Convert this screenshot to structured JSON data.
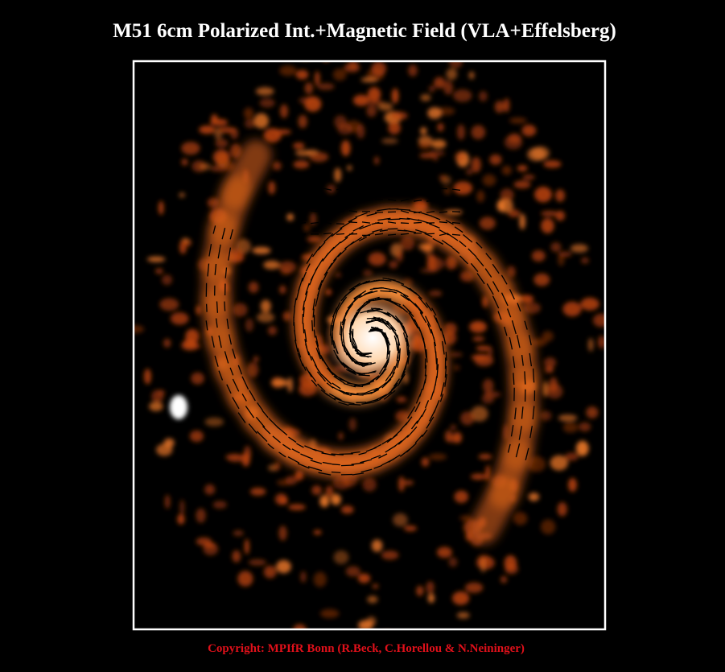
{
  "title": "M51 6cm Polarized Int.+Magnetic Field (VLA+Effelsberg)",
  "copyright": "Copyright: MPIfR Bonn (R.Beck, C.Horellou & N.Neininger)"
}
